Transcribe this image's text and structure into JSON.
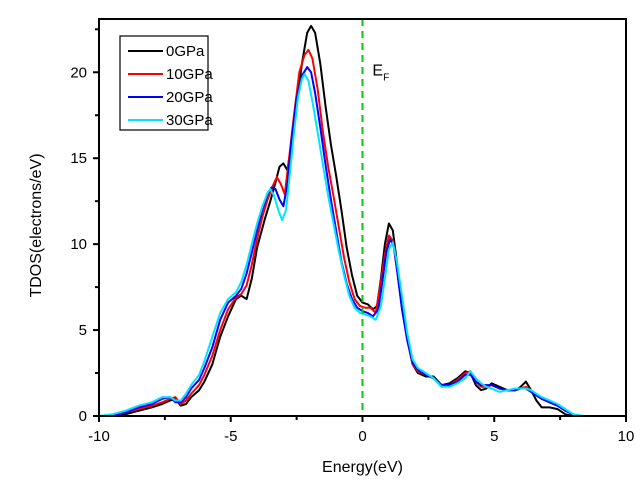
{
  "chart_data": {
    "type": "line",
    "title": "",
    "xlabel": "Energy(eV)",
    "ylabel": "TDOS(electrons/eV)",
    "xlim": [
      -10,
      10
    ],
    "ylim": [
      0,
      23.1
    ],
    "xticks": [
      -10,
      -5,
      0,
      5,
      10
    ],
    "xtick_labels": [
      "-10",
      "-5",
      "0",
      "5",
      "10"
    ],
    "xminor_ticks": [
      -7.5,
      -2.5,
      2.5,
      7.5
    ],
    "yticks": [
      0,
      5,
      10,
      15,
      20
    ],
    "ytick_labels": [
      "0",
      "5",
      "10",
      "15",
      "20"
    ],
    "yminor_ticks": [
      2.5,
      7.5,
      12.5,
      17.5,
      22.5
    ],
    "grid": false,
    "legend_position": "top-left",
    "annotations": [
      {
        "text": "E",
        "subscript": "F",
        "x": 0.3,
        "y": 19.8
      }
    ],
    "reference_lines": [
      {
        "type": "vertical",
        "x": 0,
        "color": "#00cc00",
        "style": "dashed",
        "label": "Fermi level"
      }
    ],
    "series": [
      {
        "name": "0GPa",
        "color": "#000000",
        "x": [
          -10,
          -9.5,
          -9,
          -8.5,
          -8,
          -7.6,
          -7.3,
          -7.1,
          -6.9,
          -6.7,
          -6.5,
          -6.2,
          -6,
          -5.7,
          -5.4,
          -5.1,
          -4.8,
          -4.6,
          -4.4,
          -4.2,
          -4,
          -3.7,
          -3.5,
          -3.3,
          -3.15,
          -3.0,
          -2.85,
          -2.7,
          -2.5,
          -2.3,
          -2.1,
          -1.95,
          -1.8,
          -1.6,
          -1.4,
          -1.2,
          -1.0,
          -0.8,
          -0.6,
          -0.4,
          -0.2,
          0,
          0.2,
          0.4,
          0.55,
          0.7,
          0.85,
          1.0,
          1.15,
          1.3,
          1.5,
          1.7,
          1.9,
          2.1,
          2.4,
          2.7,
          3.0,
          3.3,
          3.6,
          3.9,
          4.1,
          4.3,
          4.5,
          4.7,
          4.9,
          5.2,
          5.5,
          5.8,
          6.0,
          6.2,
          6.4,
          6.6,
          6.8,
          7.1,
          7.4,
          7.7,
          8.0,
          10
        ],
        "y": [
          0,
          0,
          0.1,
          0.3,
          0.5,
          0.7,
          0.9,
          1.0,
          0.6,
          0.7,
          1.1,
          1.5,
          2.0,
          3.0,
          4.6,
          5.8,
          6.8,
          7.0,
          6.8,
          8.0,
          9.8,
          11.5,
          12.5,
          13.6,
          14.5,
          14.7,
          14.3,
          15.8,
          18.0,
          20.5,
          22.3,
          22.7,
          22.3,
          20.5,
          18.0,
          15.8,
          14.0,
          12.0,
          9.8,
          8.2,
          7.0,
          6.6,
          6.5,
          6.2,
          6.4,
          8.0,
          10.0,
          11.2,
          10.8,
          9.0,
          6.5,
          4.5,
          3.0,
          2.5,
          2.3,
          2.3,
          1.8,
          1.9,
          2.2,
          2.6,
          2.5,
          1.8,
          1.5,
          1.6,
          1.9,
          1.7,
          1.5,
          1.5,
          1.7,
          2.0,
          1.5,
          0.9,
          0.5,
          0.5,
          0.4,
          0.1,
          0,
          0
        ]
      },
      {
        "name": "10GPa",
        "color": "#ff0000",
        "x": [
          -10,
          -9.5,
          -9,
          -8.5,
          -8,
          -7.6,
          -7.3,
          -7.1,
          -6.9,
          -6.7,
          -6.5,
          -6.2,
          -6,
          -5.7,
          -5.4,
          -5.1,
          -4.8,
          -4.6,
          -4.4,
          -4.2,
          -4,
          -3.8,
          -3.6,
          -3.4,
          -3.25,
          -3.1,
          -2.95,
          -2.8,
          -2.6,
          -2.4,
          -2.2,
          -2.05,
          -1.9,
          -1.7,
          -1.5,
          -1.3,
          -1.1,
          -0.9,
          -0.7,
          -0.5,
          -0.3,
          -0.1,
          0.1,
          0.3,
          0.5,
          0.7,
          0.85,
          1.0,
          1.15,
          1.3,
          1.5,
          1.7,
          1.9,
          2.1,
          2.4,
          2.7,
          3.0,
          3.3,
          3.6,
          3.9,
          4.1,
          4.3,
          4.5,
          4.7,
          4.9,
          5.2,
          5.5,
          5.8,
          6.0,
          6.2,
          6.4,
          6.6,
          6.8,
          7.1,
          7.4,
          7.7,
          8.0,
          8.2,
          10
        ],
        "y": [
          0,
          0,
          0.2,
          0.4,
          0.6,
          0.8,
          1.0,
          1.1,
          0.7,
          0.9,
          1.3,
          1.8,
          2.4,
          3.5,
          5.0,
          6.2,
          6.9,
          7.1,
          7.6,
          8.8,
          10.3,
          11.6,
          12.6,
          13.4,
          13.9,
          13.5,
          12.9,
          14.8,
          17.5,
          20.0,
          21.0,
          21.3,
          20.8,
          19.0,
          16.5,
          14.5,
          12.8,
          11.0,
          9.2,
          7.8,
          6.8,
          6.4,
          6.3,
          6.3,
          6.0,
          7.8,
          9.4,
          10.5,
          10.2,
          8.6,
          6.3,
          4.4,
          3.0,
          2.6,
          2.4,
          2.2,
          1.7,
          1.8,
          2.1,
          2.5,
          2.6,
          2.0,
          1.7,
          1.7,
          1.8,
          1.6,
          1.5,
          1.5,
          1.6,
          1.7,
          1.5,
          1.2,
          1.0,
          0.8,
          0.6,
          0.3,
          0.1,
          0,
          0
        ]
      },
      {
        "name": "20GPa",
        "color": "#0000ff",
        "x": [
          -10,
          -9.5,
          -9,
          -8.5,
          -8,
          -7.6,
          -7.3,
          -7.1,
          -6.9,
          -6.7,
          -6.5,
          -6.2,
          -6,
          -5.7,
          -5.4,
          -5.1,
          -4.8,
          -4.6,
          -4.4,
          -4.2,
          -4,
          -3.8,
          -3.6,
          -3.45,
          -3.3,
          -3.15,
          -3.0,
          -2.85,
          -2.7,
          -2.5,
          -2.3,
          -2.1,
          -1.95,
          -1.8,
          -1.6,
          -1.4,
          -1.2,
          -1.0,
          -0.8,
          -0.6,
          -0.4,
          -0.2,
          0,
          0.2,
          0.4,
          0.6,
          0.75,
          0.9,
          1.05,
          1.2,
          1.35,
          1.5,
          1.7,
          1.9,
          2.1,
          2.4,
          2.7,
          3.0,
          3.3,
          3.6,
          3.9,
          4.1,
          4.3,
          4.5,
          4.7,
          4.9,
          5.2,
          5.5,
          5.8,
          6.0,
          6.2,
          6.4,
          6.6,
          6.8,
          7.1,
          7.4,
          7.7,
          8.0,
          8.2,
          10
        ],
        "y": [
          0,
          0.05,
          0.2,
          0.5,
          0.7,
          1.0,
          1.1,
          0.8,
          0.8,
          1.1,
          1.6,
          2.1,
          2.8,
          4.0,
          5.6,
          6.6,
          7.0,
          7.4,
          8.3,
          9.5,
          10.8,
          12.0,
          12.9,
          13.3,
          13.2,
          12.6,
          12.2,
          13.5,
          16.0,
          18.5,
          19.8,
          20.3,
          20.0,
          18.8,
          16.8,
          14.6,
          12.6,
          10.8,
          9.0,
          7.7,
          6.8,
          6.3,
          6.1,
          6.0,
          5.8,
          6.2,
          7.8,
          9.5,
          10.3,
          9.8,
          8.0,
          6.2,
          4.4,
          3.1,
          2.7,
          2.4,
          2.2,
          1.8,
          1.8,
          2.0,
          2.4,
          2.4,
          2.0,
          1.8,
          1.8,
          1.8,
          1.6,
          1.5,
          1.5,
          1.6,
          1.6,
          1.4,
          1.2,
          1.0,
          0.8,
          0.6,
          0.3,
          0.1,
          0,
          0
        ]
      },
      {
        "name": "30GPa",
        "color": "#00e5ff",
        "x": [
          -10,
          -9.5,
          -9,
          -8.5,
          -8,
          -7.6,
          -7.3,
          -7.1,
          -6.9,
          -6.7,
          -6.5,
          -6.2,
          -6,
          -5.7,
          -5.4,
          -5.1,
          -4.8,
          -4.6,
          -4.4,
          -4.2,
          -4,
          -3.8,
          -3.6,
          -3.5,
          -3.35,
          -3.2,
          -3.05,
          -2.9,
          -2.75,
          -2.6,
          -2.45,
          -2.3,
          -2.2,
          -2.05,
          -1.9,
          -1.7,
          -1.5,
          -1.3,
          -1.1,
          -0.9,
          -0.7,
          -0.5,
          -0.3,
          -0.1,
          0.1,
          0.3,
          0.5,
          0.7,
          0.85,
          1.0,
          1.15,
          1.3,
          1.5,
          1.7,
          1.9,
          2.1,
          2.4,
          2.7,
          3.0,
          3.3,
          3.6,
          3.9,
          4.1,
          4.3,
          4.5,
          4.7,
          4.9,
          5.2,
          5.5,
          5.8,
          6.0,
          6.2,
          6.4,
          6.6,
          6.8,
          7.1,
          7.4,
          7.7,
          8.0,
          8.2,
          8.4,
          10
        ],
        "y": [
          0,
          0.1,
          0.3,
          0.6,
          0.8,
          1.1,
          1.1,
          0.9,
          0.9,
          1.3,
          1.8,
          2.4,
          3.2,
          4.6,
          6.0,
          6.8,
          7.2,
          7.8,
          8.8,
          10.0,
          11.2,
          12.2,
          13.0,
          13.2,
          12.8,
          12.0,
          11.4,
          12.0,
          14.2,
          16.5,
          18.5,
          19.6,
          19.9,
          19.5,
          18.3,
          16.5,
          14.6,
          12.8,
          11.2,
          9.6,
          8.2,
          7.0,
          6.3,
          6.0,
          5.9,
          5.8,
          5.6,
          6.4,
          8.0,
          9.7,
          10.1,
          9.0,
          7.0,
          4.8,
          3.3,
          2.8,
          2.5,
          2.2,
          1.7,
          1.7,
          1.9,
          2.2,
          2.6,
          2.2,
          1.9,
          1.7,
          1.6,
          1.4,
          1.5,
          1.6,
          1.6,
          1.6,
          1.5,
          1.3,
          1.1,
          0.9,
          0.7,
          0.4,
          0.1,
          0.05,
          0,
          0
        ]
      }
    ]
  }
}
